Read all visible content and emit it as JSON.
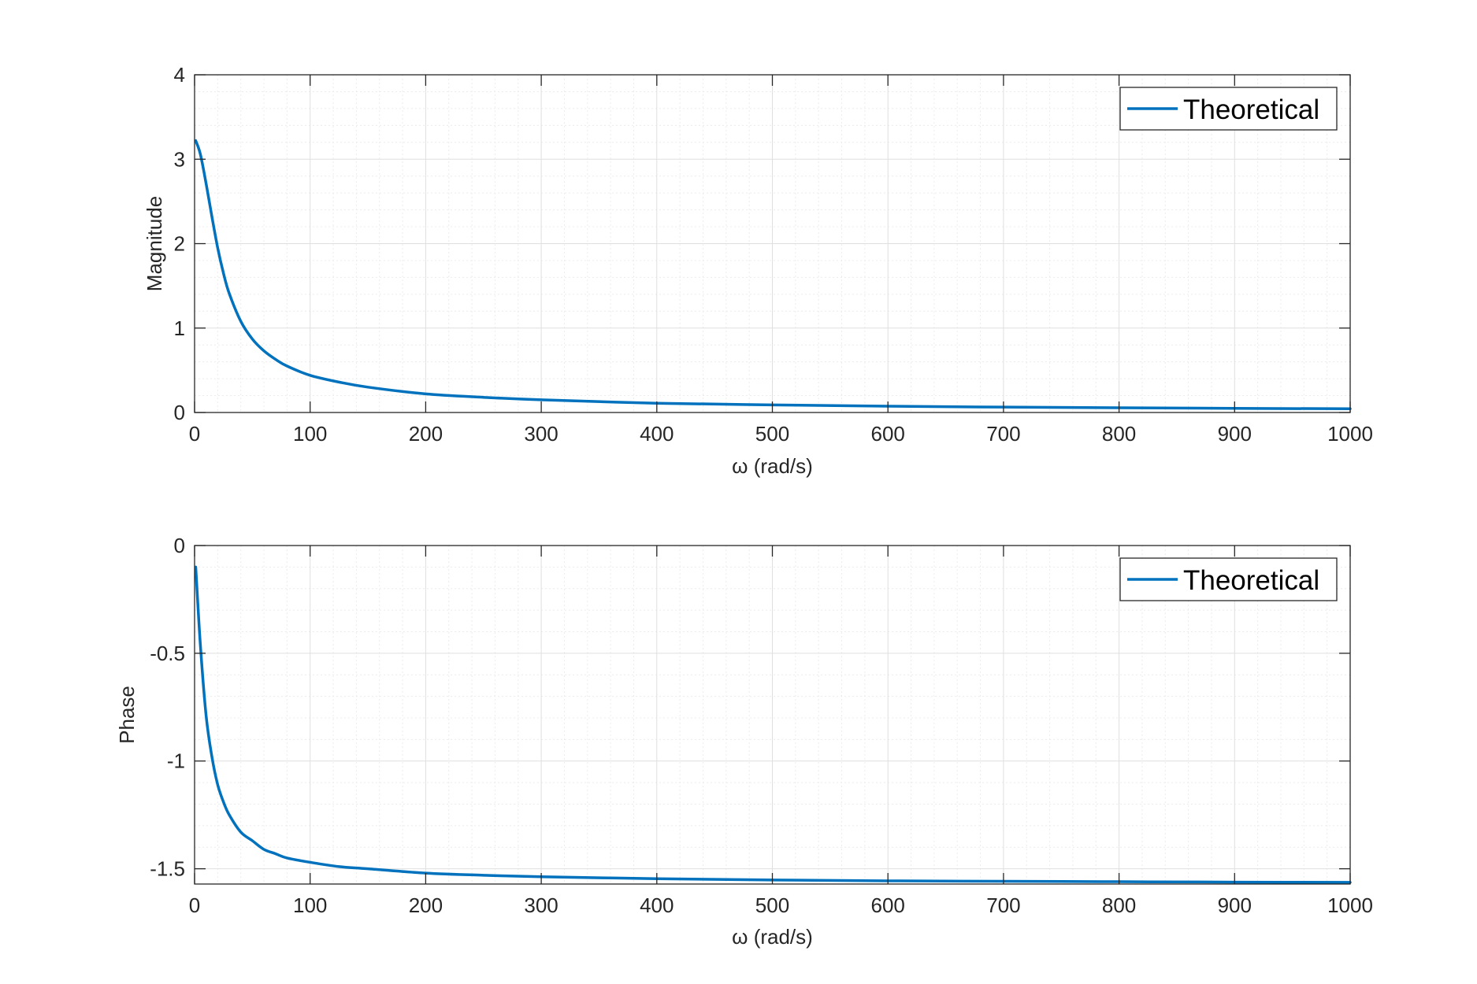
{
  "colors": {
    "series": "#0072BD",
    "axes": "#262626",
    "grid_major": "#dfdfdf",
    "grid_minor": "#ececec",
    "background": "#ffffff"
  },
  "chart_data": [
    {
      "type": "line",
      "title": "",
      "xlabel": "ω (rad/s)",
      "ylabel": "Magnitude",
      "xlim": [
        0,
        1000
      ],
      "ylim": [
        0,
        4
      ],
      "xticks": [
        0,
        100,
        200,
        300,
        400,
        500,
        600,
        700,
        800,
        900,
        1000
      ],
      "xtick_labels": [
        "0",
        "100",
        "200",
        "300",
        "400",
        "500",
        "600",
        "700",
        "800",
        "900",
        "1000"
      ],
      "yticks": [
        0,
        1,
        2,
        3,
        4
      ],
      "ytick_labels": [
        "0",
        "1",
        "2",
        "3",
        "4"
      ],
      "grid": true,
      "minor_grid": true,
      "legend": {
        "location": "top-right",
        "entries": [
          "Theoretical"
        ]
      },
      "series": [
        {
          "name": "Theoretical",
          "x": [
            1,
            5,
            10,
            15,
            20,
            25,
            30,
            40,
            50,
            60,
            70,
            80,
            100,
            125,
            150,
            200,
            250,
            300,
            400,
            500,
            600,
            700,
            800,
            900,
            1000
          ],
          "y": [
            3.22,
            3.06,
            2.71,
            2.32,
            1.95,
            1.65,
            1.41,
            1.08,
            0.87,
            0.73,
            0.63,
            0.55,
            0.44,
            0.36,
            0.3,
            0.22,
            0.18,
            0.15,
            0.11,
            0.09,
            0.074,
            0.064,
            0.056,
            0.049,
            0.044
          ]
        }
      ]
    },
    {
      "type": "line",
      "title": "",
      "xlabel": "ω (rad/s)",
      "ylabel": "Phase",
      "xlim": [
        0,
        1000
      ],
      "ylim": [
        -1.5708,
        0
      ],
      "xticks": [
        0,
        100,
        200,
        300,
        400,
        500,
        600,
        700,
        800,
        900,
        1000
      ],
      "xtick_labels": [
        "0",
        "100",
        "200",
        "300",
        "400",
        "500",
        "600",
        "700",
        "800",
        "900",
        "1000"
      ],
      "yticks": [
        -1.5,
        -1,
        -0.5,
        0
      ],
      "ytick_labels": [
        "-1.5",
        "-1",
        "-0.5",
        "0"
      ],
      "grid": true,
      "minor_grid": true,
      "legend": {
        "location": "top-right",
        "entries": [
          "Theoretical"
        ]
      },
      "series": [
        {
          "name": "Theoretical",
          "x": [
            1,
            5,
            10,
            15,
            20,
            25,
            30,
            40,
            50,
            60,
            70,
            80,
            100,
            125,
            150,
            200,
            250,
            300,
            400,
            500,
            600,
            700,
            800,
            900,
            1000
          ],
          "y": [
            -0.1,
            -0.46,
            -0.79,
            -0.98,
            -1.11,
            -1.19,
            -1.25,
            -1.33,
            -1.37,
            -1.41,
            -1.43,
            -1.45,
            -1.47,
            -1.49,
            -1.5,
            -1.52,
            -1.53,
            -1.537,
            -1.546,
            -1.552,
            -1.556,
            -1.558,
            -1.56,
            -1.562,
            -1.563
          ]
        }
      ]
    }
  ]
}
